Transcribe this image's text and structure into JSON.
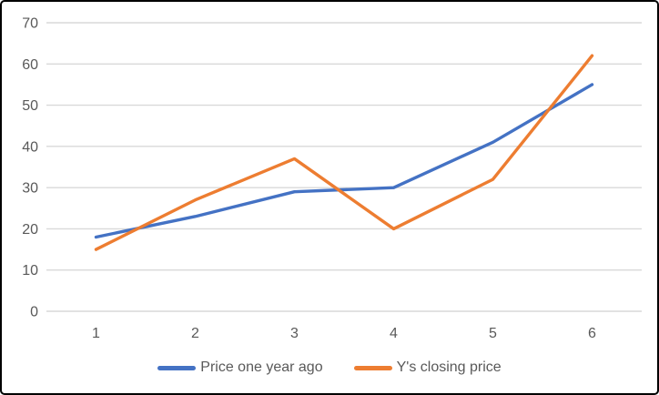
{
  "chart_data": {
    "type": "line",
    "title": "",
    "xlabel": "",
    "ylabel": "",
    "categories": [
      "1",
      "2",
      "3",
      "4",
      "5",
      "6"
    ],
    "series": [
      {
        "name": "Price one year ago",
        "values": [
          18,
          23,
          29,
          30,
          41,
          55
        ],
        "color": "#4472C4"
      },
      {
        "name": "Y's closing price",
        "values": [
          15,
          27,
          37,
          20,
          32,
          62
        ],
        "color": "#ED7D31"
      }
    ],
    "ylim": [
      0,
      70
    ],
    "yticks": [
      0,
      10,
      20,
      30,
      40,
      50,
      60,
      70
    ],
    "grid": true,
    "legend_position": "bottom"
  },
  "colors": {
    "gridline": "#D9D9D9",
    "tick_label": "#595959",
    "legend_text": "#595959",
    "frame_border": "#000000",
    "background": "#FFFFFF"
  }
}
